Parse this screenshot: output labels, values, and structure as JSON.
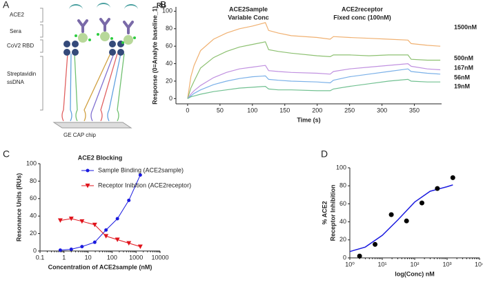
{
  "panels": [
    "A",
    "B",
    "C",
    "D"
  ],
  "diagram": {
    "labels": [
      "ACE2",
      "Sera",
      "CoV2 RBD",
      "Streptavidin",
      "ssDNA"
    ],
    "chip": "GE CAP chip"
  },
  "chart_data": [
    {
      "type": "line",
      "y_unit": "RU",
      "x_label": "Time (s)",
      "y_label": "Response (0=Analyte baseline_1)",
      "annotations": [
        {
          "text": "ACE2Sample",
          "color": "#3a6fd8"
        },
        {
          "text": "Variable Conc",
          "color": "#3a6fd8"
        },
        {
          "text": "ACE2receptor",
          "color": "#e8231c"
        },
        {
          "text": "Fixed conc (100nM)",
          "color": "#e8231c"
        }
      ],
      "label_color": "#3d72c4",
      "x": [
        0,
        5,
        10,
        20,
        40,
        60,
        80,
        100,
        120,
        125,
        140,
        160,
        200,
        220,
        225,
        250,
        280,
        310,
        340,
        345,
        370,
        390
      ],
      "series": [
        {
          "name": "1500nM",
          "color": "#f0b070",
          "values": [
            0,
            25,
            38,
            55,
            68,
            75,
            80,
            83,
            87,
            78,
            75,
            72,
            70,
            68,
            71,
            70,
            69,
            68,
            67,
            63,
            61,
            60
          ]
        },
        {
          "name": "500nM",
          "color": "#8cc070",
          "values": [
            0,
            12,
            20,
            35,
            47,
            54,
            59,
            62,
            65,
            56,
            54,
            52,
            49,
            48,
            50,
            50,
            49,
            50,
            50,
            45,
            44,
            44
          ]
        },
        {
          "name": "167nM",
          "color": "#c090e0",
          "values": [
            0,
            5,
            9,
            15,
            24,
            30,
            34,
            36,
            38,
            32,
            31,
            30,
            29,
            28,
            31,
            34,
            36,
            38,
            40,
            37,
            34,
            33
          ]
        },
        {
          "name": "56nM",
          "color": "#7ab0e8",
          "values": [
            0,
            3,
            6,
            10,
            16,
            20,
            23,
            25,
            26,
            22,
            21,
            20,
            19,
            18,
            21,
            25,
            28,
            31,
            34,
            31,
            29,
            28
          ]
        },
        {
          "name": "19nM",
          "color": "#70c090",
          "values": [
            0,
            2,
            3,
            5,
            8,
            10,
            12,
            13,
            14,
            11,
            10,
            10,
            9,
            9,
            11,
            14,
            17,
            20,
            22,
            20,
            19,
            19
          ]
        }
      ],
      "xlim": [
        -18,
        392
      ],
      "xticks": [
        0,
        50,
        100,
        150,
        200,
        250,
        300,
        350
      ],
      "ylim": [
        -6,
        105
      ],
      "yticks": [
        0,
        20,
        40,
        60,
        80,
        100
      ]
    },
    {
      "type": "scatter",
      "title": "ACE2 Blocking",
      "x_label": "Concentration of ACE2sample (nM)",
      "y_label": "Resonance Units (RUs)",
      "xscale": "log",
      "xlim": [
        0.1,
        10000
      ],
      "xticks": [
        0.1,
        1,
        10,
        100,
        1000,
        10000
      ],
      "ylim": [
        0,
        100
      ],
      "yticks": [
        0,
        20,
        40,
        60,
        80,
        100
      ],
      "legend": "upper right",
      "x": [
        0.7,
        2,
        5.6,
        19,
        56,
        167,
        500,
        1500
      ],
      "series": [
        {
          "name": "Sample Binding (ACE2sample)",
          "color": "#1a1adf",
          "marker": "circle",
          "values": [
            1,
            2,
            5,
            10,
            24,
            37,
            58,
            87
          ]
        },
        {
          "name": "Receptor Inibition (ACE2receptor)",
          "color": "#e0141c",
          "marker": "triangle",
          "values": [
            35,
            37,
            34,
            30,
            17,
            13,
            9,
            5
          ]
        }
      ]
    },
    {
      "type": "scatter",
      "x_label": "log(Conc) nM",
      "y_label": [
        "% ACE2",
        "Receptor Inhibition"
      ],
      "xscale": "log",
      "xlim": [
        1,
        10000
      ],
      "xticks": [
        {
          "value": 1,
          "label": "10⁰"
        },
        {
          "value": 10,
          "label": "10¹"
        },
        {
          "value": 100,
          "label": "10²"
        },
        {
          "value": 1000,
          "label": "10³"
        },
        {
          "value": 10000,
          "label": "10⁴"
        }
      ],
      "ylim": [
        0,
        100
      ],
      "yticks": [
        0,
        20,
        40,
        60,
        80,
        100
      ],
      "x": [
        2,
        6,
        19,
        56,
        167,
        500,
        1500
      ],
      "series": [
        {
          "color": "#000000",
          "marker": "circle",
          "values": [
            2,
            15,
            48,
            41,
            61,
            77,
            89
          ]
        }
      ],
      "fit": {
        "color": "#1a1adf",
        "x": [
          1,
          3,
          10,
          30,
          100,
          300,
          1000,
          1500
        ],
        "values": [
          7,
          12,
          25,
          42,
          62,
          74,
          79,
          81
        ]
      }
    }
  ]
}
